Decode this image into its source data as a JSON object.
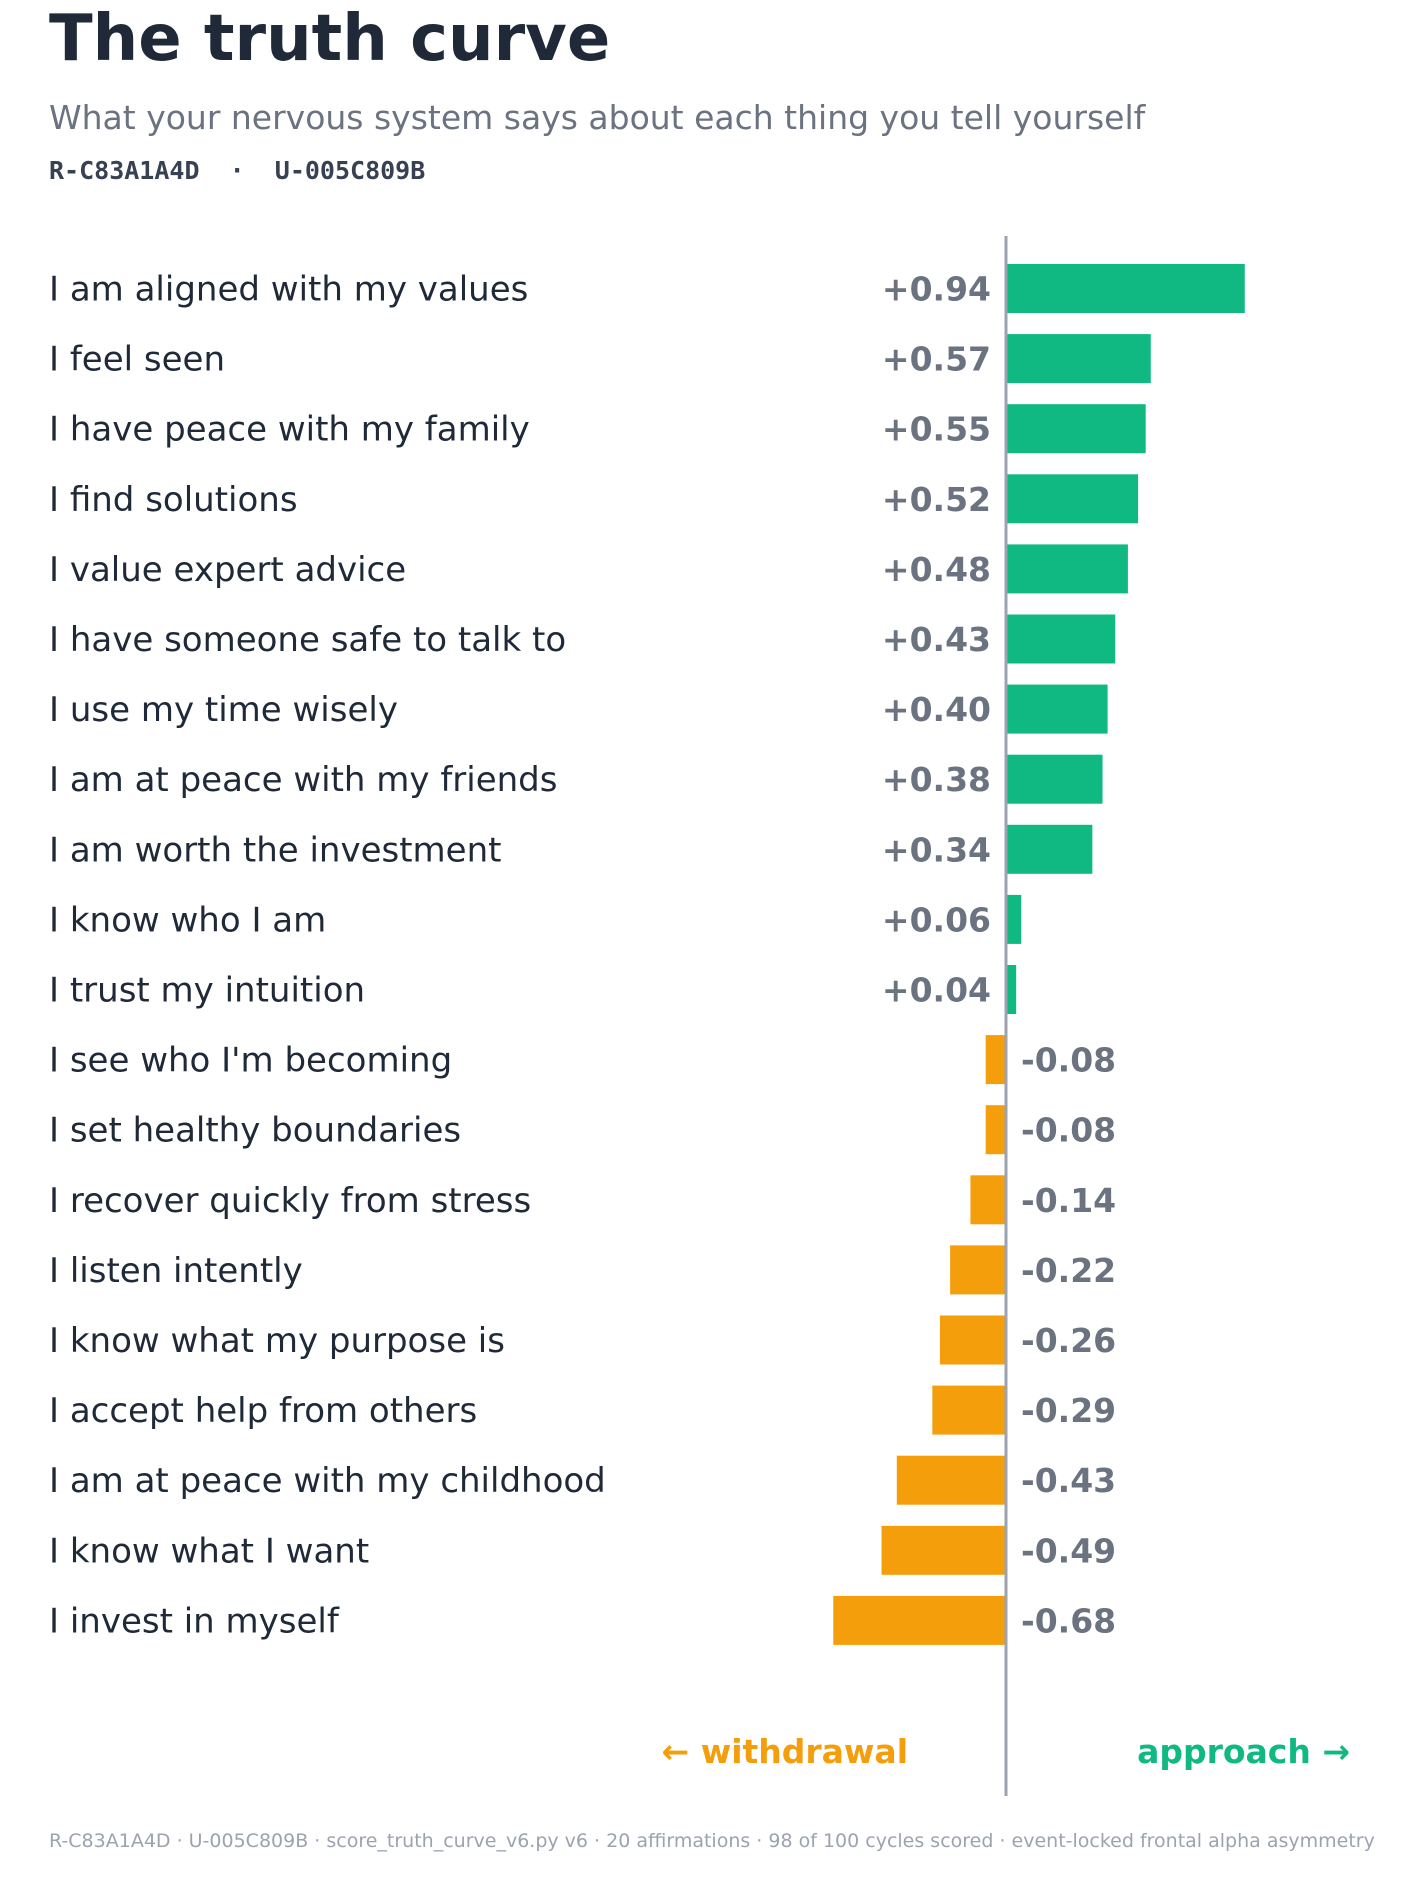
{
  "header": {
    "title": "The truth curve",
    "subtitle": "What your nervous system says about each thing you tell yourself",
    "ids": "R-C83A1A4D  ·  U-005C809B"
  },
  "footer": "R-C83A1A4D  ·  U-005C809B  ·  score_truth_curve_v6.py v6  ·  20 affirmations  ·  98 of 100 cycles scored  ·  event-locked frontal alpha asymmetry",
  "chart_data": {
    "type": "bar",
    "orientation": "horizontal",
    "categories": [
      "I am aligned with my values",
      "I feel seen",
      "I have peace with my family",
      "I find solutions",
      "I value expert advice",
      "I have someone safe to talk to",
      "I use my time wisely",
      "I am at peace with my friends",
      "I am worth the investment",
      "I know who I am",
      "I trust my intuition",
      "I see who I'm becoming",
      "I set healthy boundaries",
      "I recover quickly from stress",
      "I listen intently",
      "I know what my purpose is",
      "I accept help from others",
      "I am at peace with my childhood",
      "I know what I want",
      "I invest in myself"
    ],
    "values": [
      0.94,
      0.57,
      0.55,
      0.52,
      0.48,
      0.43,
      0.4,
      0.38,
      0.34,
      0.06,
      0.04,
      -0.08,
      -0.08,
      -0.14,
      -0.22,
      -0.26,
      -0.29,
      -0.43,
      -0.49,
      -0.68
    ],
    "value_labels": [
      "+0.94",
      "+0.57",
      "+0.55",
      "+0.52",
      "+0.48",
      "+0.43",
      "+0.40",
      "+0.38",
      "+0.34",
      "+0.06",
      "+0.04",
      "-0.08",
      "-0.08",
      "-0.14",
      "-0.22",
      "-0.26",
      "-0.29",
      "-0.43",
      "-0.49",
      "-0.68"
    ],
    "negative_label": "← withdrawal",
    "positive_label": "approach →",
    "colors": {
      "positive": "#10b981",
      "negative": "#f59e0b",
      "axis": "#9ca3af"
    }
  }
}
